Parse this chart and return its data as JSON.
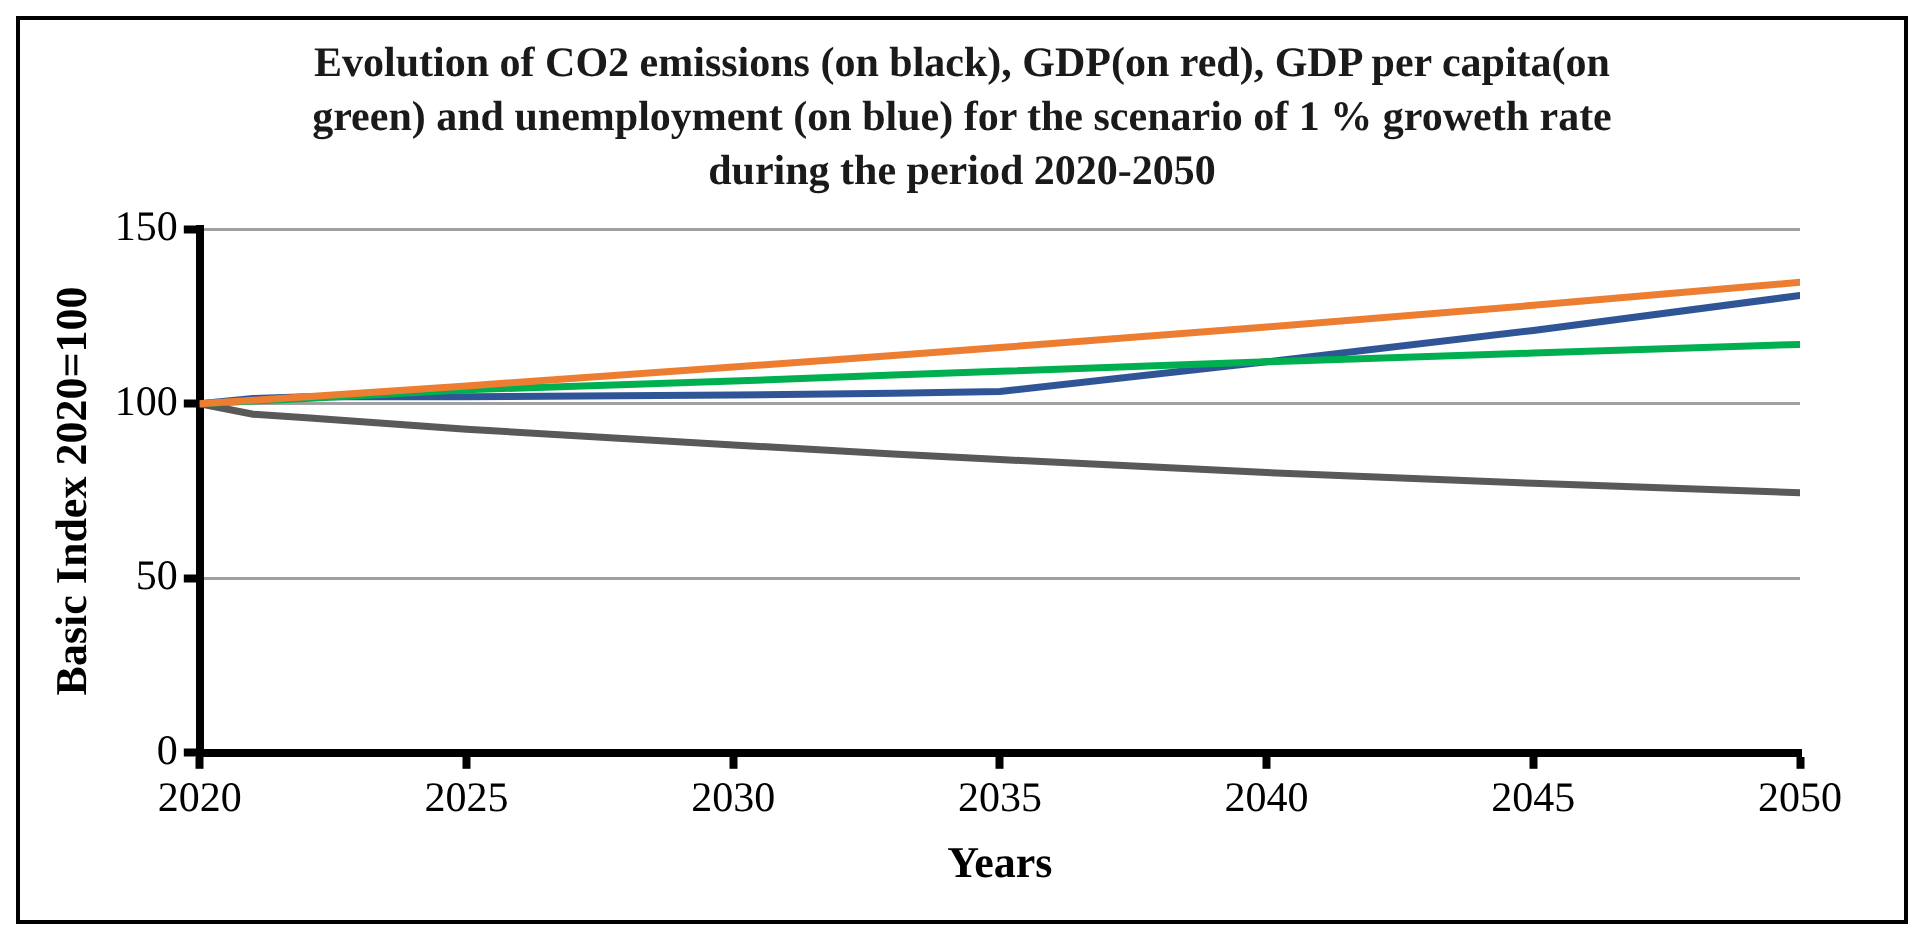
{
  "chart_data": {
    "type": "line",
    "title": "Evolution of CO2 emissions (on black), GDP(on red), GDP per capita(on green) and unemployment (on blue) for the scenario of 1 % groweth rate during the period 2020-2050",
    "xlabel": "Years",
    "ylabel": "Basic Index 2020=100",
    "x": [
      2020,
      2021,
      2022,
      2025,
      2030,
      2033,
      2035,
      2040,
      2045,
      2050
    ],
    "series": [
      {
        "color": "#ed7d31",
        "values": [
          100,
          101,
          102,
          105.1,
          110.5,
          113.8,
          116.1,
          122,
          128.2,
          134.8
        ]
      },
      {
        "color": "#00b050",
        "values": [
          100,
          100.8,
          101.5,
          104,
          106.5,
          108.2,
          109.3,
          112,
          114.5,
          117
        ]
      },
      {
        "color": "#2f5597",
        "values": [
          100,
          101.5,
          102,
          102,
          102.5,
          103,
          103.5,
          112,
          121,
          131
        ]
      },
      {
        "color": "#595959",
        "values": [
          100,
          97,
          96,
          92.7,
          88.2,
          85.6,
          84,
          80.3,
          77.2,
          74.5
        ]
      }
    ],
    "xlim": [
      2020,
      2050
    ],
    "xticks": [
      2020,
      2025,
      2030,
      2035,
      2040,
      2045,
      2050
    ],
    "ylim": [
      0,
      150
    ],
    "yticks": [
      0,
      50,
      100,
      150
    ],
    "grid": "y",
    "legend": false,
    "marker": "none",
    "line_style": "solid"
  }
}
